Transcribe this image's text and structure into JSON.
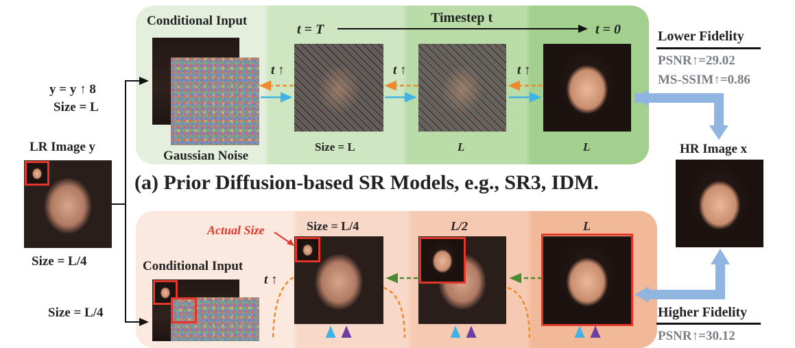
{
  "top": {
    "conditional_input": "Conditional Input",
    "gaussian_noise": "Gaussian Noise",
    "t_eq_T": "t = T",
    "timestep": "Timestep t",
    "t_eq_0": "t = 0",
    "t_arrow": "t ↑",
    "size_L": "Size = L",
    "L": "L",
    "caption": "(a) Prior Diffusion-based SR Models, e.g., SR3, IDM."
  },
  "left": {
    "y_up": "y = y ↑ 8",
    "size_L": "Size = L",
    "lr_image": "LR Image y",
    "size_L4": "Size = L/4",
    "size_L4_2": "Size = L/4"
  },
  "right": {
    "lower_fidelity": "Lower Fidelity",
    "psnr_low": "PSNR↑=29.02",
    "msssim_low": "MS-SSIM↑=0.86",
    "hr_image": "HR Image x",
    "higher_fidelity": "Higher Fidelity",
    "psnr_high": "PSNR↑=30.12"
  },
  "bottom": {
    "actual_size": "Actual Size",
    "size_L4": "Size = L/4",
    "L2": "L/2",
    "L": "L",
    "conditional_input": "Conditional Input",
    "t_arrow": "t ↑"
  },
  "colors": {
    "orange_arrow": "#ee8a2e",
    "blue_arrow": "#3fb3e3",
    "green_arrow": "#4a8a2e",
    "red_box": "#e2362b",
    "big_arrow": "#8fb5e0"
  }
}
